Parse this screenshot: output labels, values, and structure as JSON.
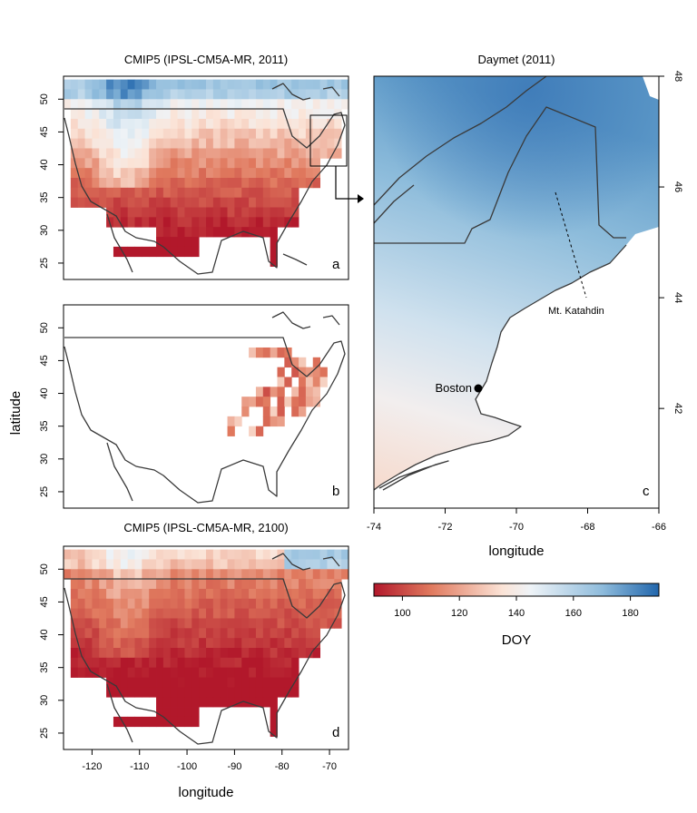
{
  "panels": {
    "a": {
      "title": "CMIP5 (IPSL-CM5A-MR, 2011)",
      "letter": "a"
    },
    "b": {
      "title": "",
      "letter": "b"
    },
    "c": {
      "title": "Daymet (2011)",
      "letter": "c"
    },
    "d": {
      "title": "CMIP5 (IPSL-CM5A-MR, 2100)",
      "letter": "d"
    }
  },
  "axes": {
    "latitude_label": "latitude",
    "longitude_label": "longitude",
    "left_lat_ticks": [
      "50",
      "45",
      "40",
      "35",
      "30",
      "25"
    ],
    "left_lon_ticks": [
      "-120",
      "-110",
      "-100",
      "-90",
      "-80",
      "-70"
    ],
    "c_lat_ticks": [
      "48",
      "46",
      "44",
      "42"
    ],
    "c_lon_ticks": [
      "-74",
      "-72",
      "-70",
      "-68",
      "-66"
    ]
  },
  "annotations": {
    "boston": "Boston",
    "katahdin": "Mt. Katahdin"
  },
  "colorbar": {
    "label": "DOY",
    "ticks": [
      "100",
      "120",
      "140",
      "160",
      "180"
    ],
    "min": 90,
    "max": 190,
    "colors": [
      "#b2182b",
      "#d6604d",
      "#f4a582",
      "#f7f7f7",
      "#92c5de",
      "#4393c3",
      "#2166ac"
    ]
  }
}
